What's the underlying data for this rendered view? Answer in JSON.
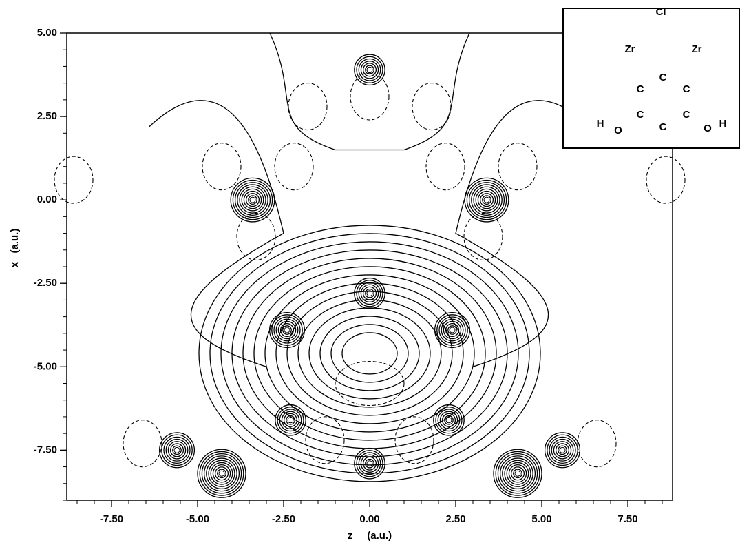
{
  "chart_data": {
    "type": "contour",
    "xlabel": "z     (a.u.)",
    "ylabel": "x   (a.u.)",
    "xlim": [
      -8.8,
      8.8
    ],
    "ylim": [
      -9,
      5
    ],
    "xticks": [
      {
        "value": -7.5,
        "label": "-7.50"
      },
      {
        "value": -5,
        "label": "-5.00"
      },
      {
        "value": -2.5,
        "label": "-2.50"
      },
      {
        "value": 0,
        "label": "0.00"
      },
      {
        "value": 2.5,
        "label": "2.50"
      },
      {
        "value": 5,
        "label": "5.00"
      },
      {
        "value": 7.5,
        "label": "7.50"
      }
    ],
    "yticks": [
      {
        "value": 5,
        "label": "5.00"
      },
      {
        "value": 2.5,
        "label": "2.50"
      },
      {
        "value": 0,
        "label": "0.00"
      },
      {
        "value": -2.5,
        "label": "-2.50"
      },
      {
        "value": -5,
        "label": "-5.00"
      },
      {
        "value": -7.5,
        "label": "-7.50"
      }
    ],
    "inset_labels": [
      "Cl",
      "Zr",
      "Zr",
      "C",
      "C",
      "C",
      "H",
      "O",
      "C",
      "C",
      "C",
      "O",
      "H"
    ]
  }
}
